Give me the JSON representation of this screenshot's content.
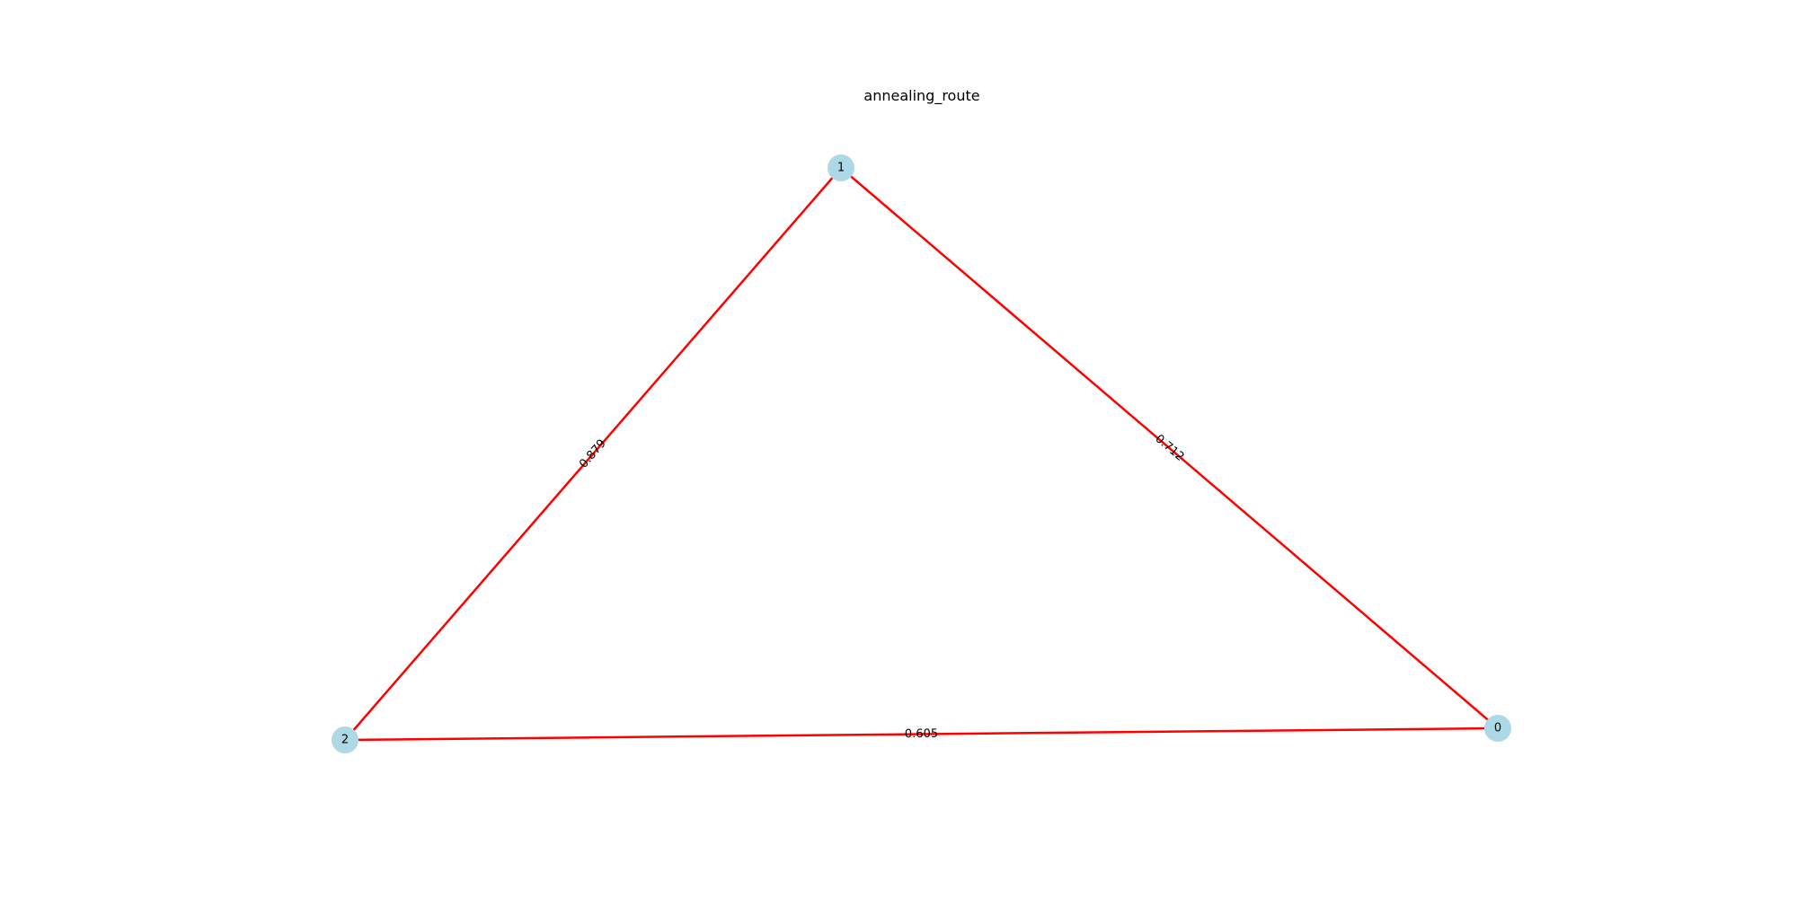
{
  "title": "annealing_route",
  "colors": {
    "edge": "#ff0000",
    "node_fill": "#add8e6",
    "text": "#000000",
    "background": "#ffffff"
  },
  "graph": {
    "nodes": [
      {
        "id": "0",
        "label": "0"
      },
      {
        "id": "1",
        "label": "1"
      },
      {
        "id": "2",
        "label": "2"
      }
    ],
    "edges": [
      {
        "source": "2",
        "target": "1",
        "label": "0.879"
      },
      {
        "source": "1",
        "target": "0",
        "label": "0.712"
      },
      {
        "source": "2",
        "target": "0",
        "label": "0.605"
      }
    ]
  }
}
